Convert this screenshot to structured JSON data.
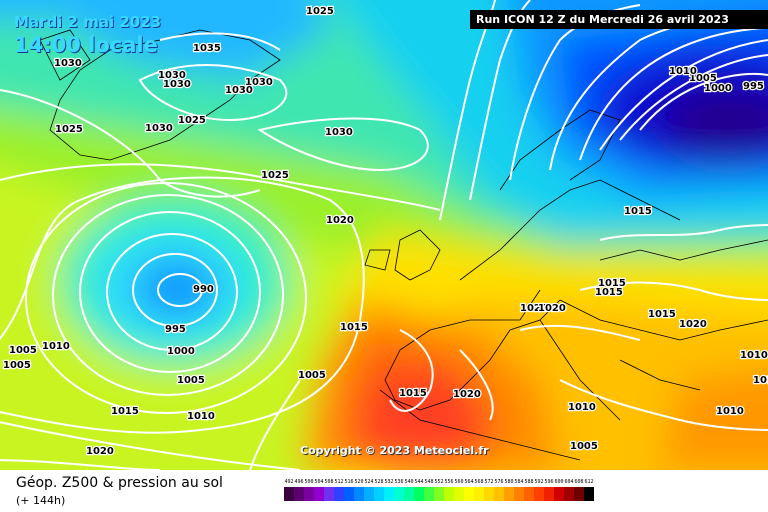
{
  "header": {
    "date": "Mardi 2 mai 2023",
    "hour": "14:00 locale",
    "run": "Run ICON 12 Z du Mercredi 26 avril 2023"
  },
  "copyright": "Copyright © 2023 Meteociel.fr",
  "footer": {
    "product": "Géop. Z500 & pression au sol",
    "lead": "(+ 144h)"
  },
  "legend": {
    "values": [
      "492",
      "496",
      "500",
      "504",
      "508",
      "512",
      "516",
      "520",
      "524",
      "528",
      "532",
      "536",
      "540",
      "544",
      "548",
      "552",
      "556",
      "560",
      "564",
      "568",
      "572",
      "576",
      "580",
      "584",
      "588",
      "592",
      "596",
      "600",
      "604",
      "608",
      "612"
    ],
    "colors": [
      "#3a0040",
      "#5a0070",
      "#7a00a0",
      "#9000d0",
      "#7030f0",
      "#3040ff",
      "#0060ff",
      "#0088ff",
      "#00b0ff",
      "#00d0ff",
      "#00f0ff",
      "#00ffd0",
      "#00ffa0",
      "#00ff60",
      "#40ff40",
      "#80ff20",
      "#c0ff00",
      "#e0ff00",
      "#ffff00",
      "#fff000",
      "#ffd800",
      "#ffc000",
      "#ffa000",
      "#ff8000",
      "#ff6000",
      "#ff4000",
      "#f02000",
      "#d00000",
      "#a00000",
      "#700000",
      "#000000"
    ]
  },
  "isobar_labels": [
    "1025",
    "1035",
    "1030",
    "1030",
    "1030",
    "1030",
    "1030",
    "1025",
    "1030",
    "1025",
    "1030",
    "1025",
    "1020",
    "990",
    "995",
    "1000",
    "1005",
    "1010",
    "1005",
    "1010",
    "1015",
    "1020",
    "1005",
    "1015",
    "1020",
    "1015",
    "1010",
    "1005",
    "995",
    "1000",
    "1005",
    "1010",
    "1015",
    "1015",
    "1015",
    "1020",
    "1020",
    "1015",
    "1020",
    "1015",
    "1010",
    "1005",
    "1010"
  ]
}
